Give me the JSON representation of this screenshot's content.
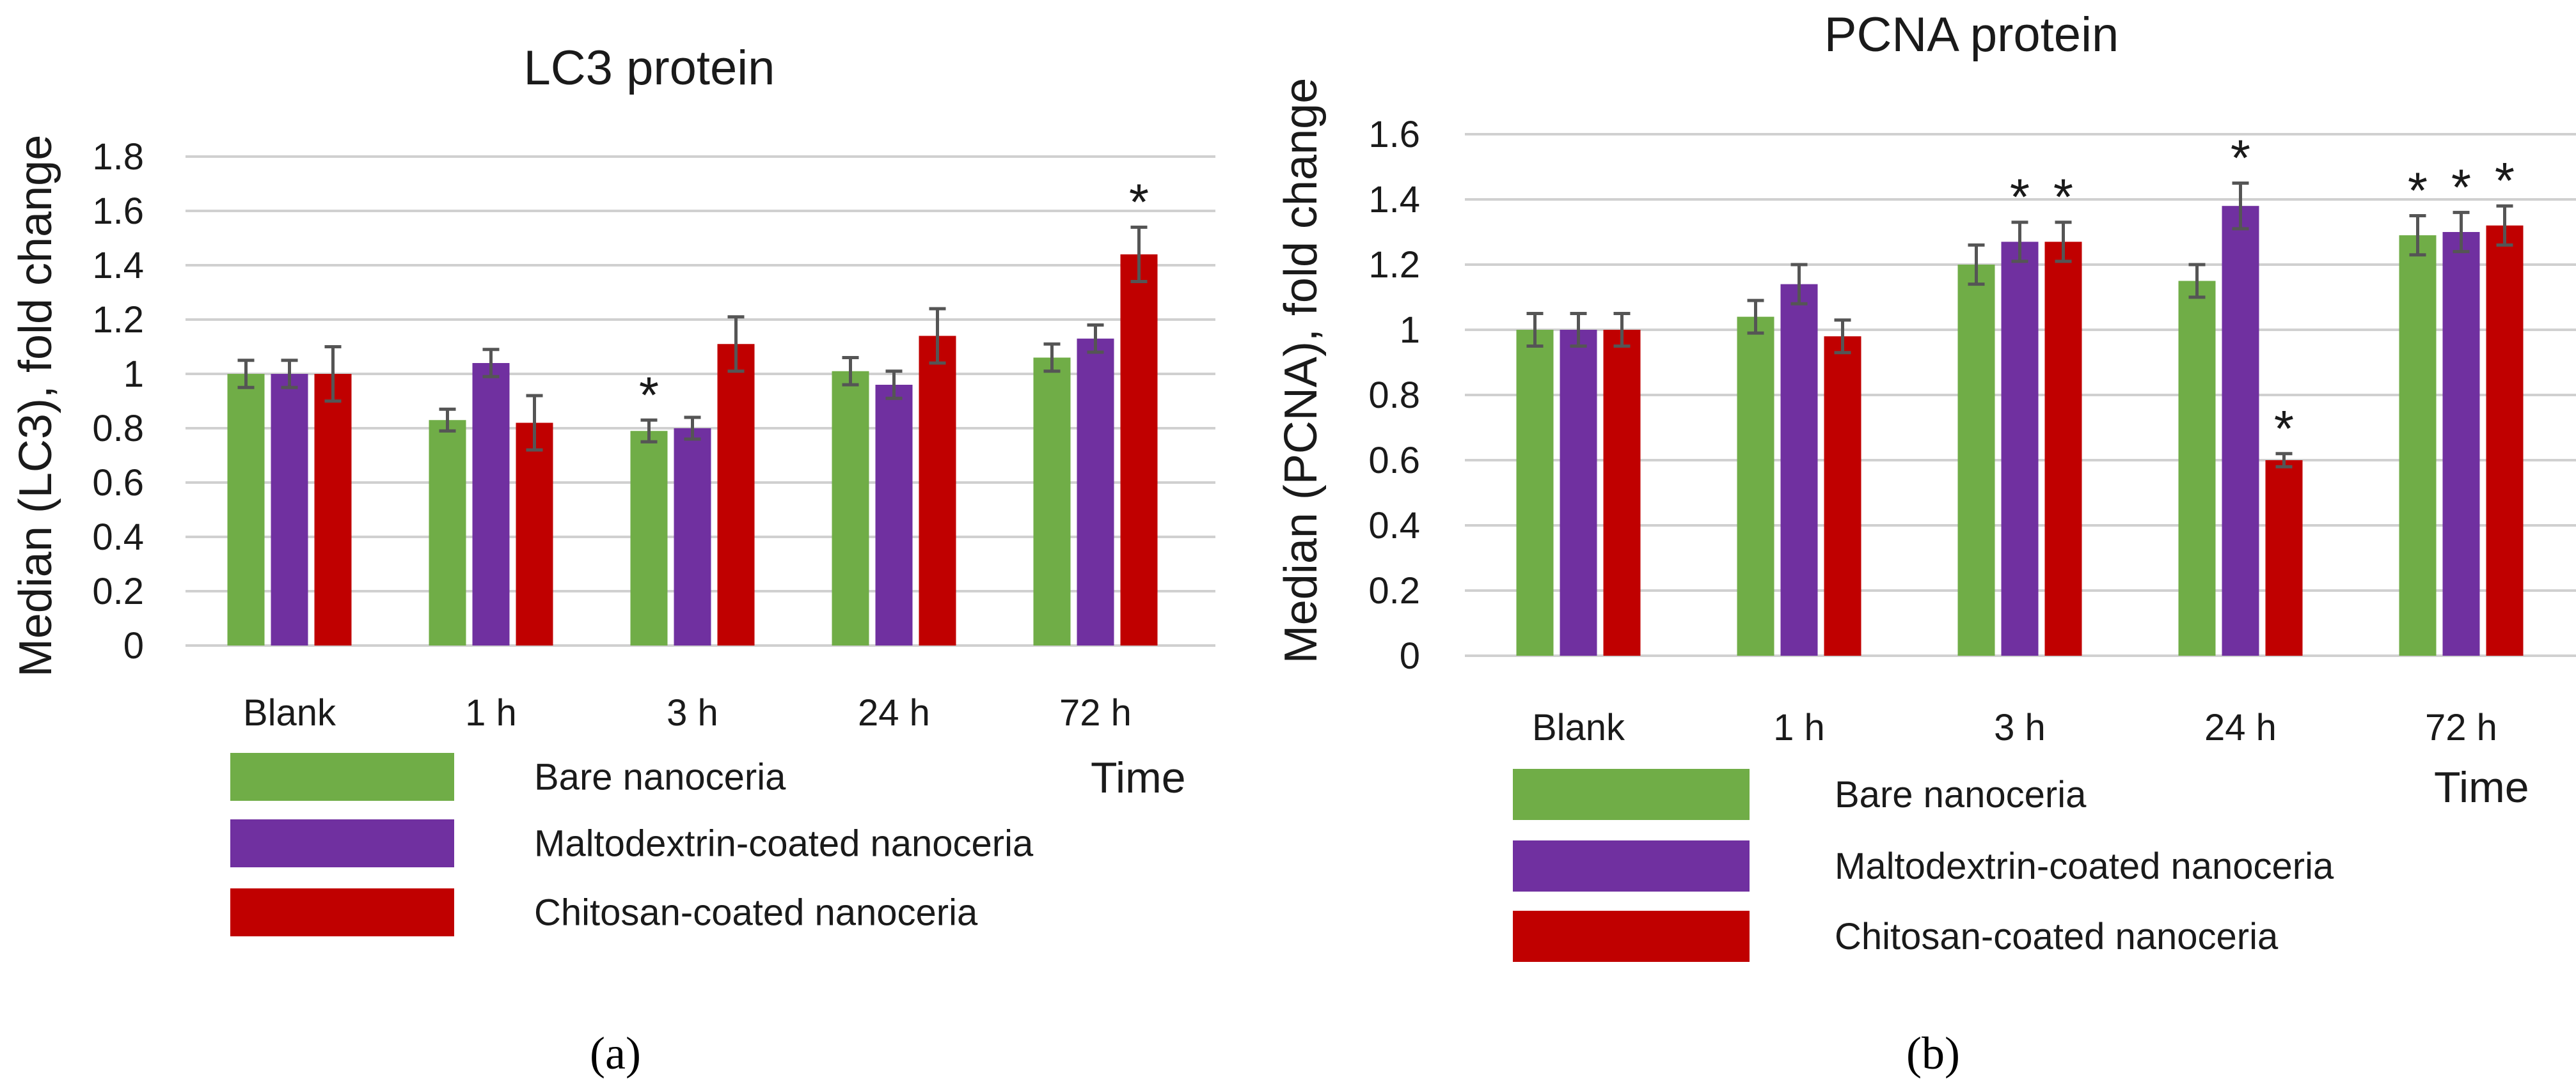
{
  "chart_data": [
    {
      "type": "bar",
      "panel": "(a)",
      "title": "LC3 protein",
      "ylabel": "Median (LC3), fold change",
      "xlabel": "Time",
      "ylim": [
        0,
        1.8
      ],
      "yticks": [
        "0",
        "0.2",
        "0.4",
        "0.6",
        "0.8",
        "1",
        "1.2",
        "1.4",
        "1.6",
        "1.8"
      ],
      "grid": true,
      "legend_position": "bottom",
      "categories": [
        "Blank",
        "1 h",
        "3 h",
        "24 h",
        "72 h"
      ],
      "series": [
        {
          "name": "Bare nanoceria",
          "color": "#70ad47",
          "values": [
            1.0,
            0.83,
            0.79,
            1.01,
            1.06
          ],
          "errors": [
            0.05,
            0.04,
            0.04,
            0.05,
            0.05
          ],
          "significant": [
            false,
            false,
            true,
            false,
            false
          ]
        },
        {
          "name": "Maltodextrin-coated nanoceria",
          "color": "#7030a0",
          "values": [
            1.0,
            1.04,
            0.8,
            0.96,
            1.13
          ],
          "errors": [
            0.05,
            0.05,
            0.04,
            0.05,
            0.05
          ],
          "significant": [
            false,
            false,
            false,
            false,
            false
          ]
        },
        {
          "name": "Chitosan-coated nanoceria",
          "color": "#c00000",
          "values": [
            1.0,
            0.82,
            1.11,
            1.14,
            1.44
          ],
          "errors": [
            0.1,
            0.1,
            0.1,
            0.1,
            0.1
          ],
          "significant": [
            false,
            false,
            false,
            false,
            true
          ]
        }
      ],
      "significance_marker": "*"
    },
    {
      "type": "bar",
      "panel": "(b)",
      "title": "PCNA protein",
      "ylabel": "Median (PCNA),  fold change",
      "xlabel": "Time",
      "ylim": [
        0,
        1.6
      ],
      "yticks": [
        "0",
        "0.2",
        "0.4",
        "0.6",
        "0.8",
        "1",
        "1.2",
        "1.4",
        "1.6"
      ],
      "grid": true,
      "legend_position": "bottom",
      "categories": [
        "Blank",
        "1 h",
        "3 h",
        "24 h",
        "72 h"
      ],
      "series": [
        {
          "name": "Bare nanoceria",
          "color": "#70ad47",
          "values": [
            1.0,
            1.04,
            1.2,
            1.15,
            1.29
          ],
          "errors": [
            0.05,
            0.05,
            0.06,
            0.05,
            0.06
          ],
          "significant": [
            false,
            false,
            false,
            false,
            true
          ]
        },
        {
          "name": "Maltodextrin-coated nanoceria",
          "color": "#7030a0",
          "values": [
            1.0,
            1.14,
            1.27,
            1.38,
            1.3
          ],
          "errors": [
            0.05,
            0.06,
            0.06,
            0.07,
            0.06
          ],
          "significant": [
            false,
            false,
            true,
            true,
            true
          ]
        },
        {
          "name": "Chitosan-coated nanoceria",
          "color": "#c00000",
          "values": [
            1.0,
            0.98,
            1.27,
            0.6,
            1.32
          ],
          "errors": [
            0.05,
            0.05,
            0.06,
            0.02,
            0.06
          ],
          "significant": [
            false,
            false,
            true,
            true,
            true
          ]
        }
      ],
      "significance_marker": "*"
    }
  ]
}
